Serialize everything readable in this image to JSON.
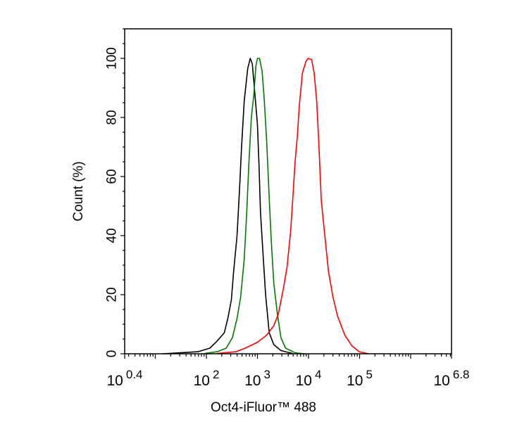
{
  "chart_data": {
    "type": "line",
    "title": "",
    "xlabel": "Oct4-iFluor™ 488",
    "ylabel": "Count  (%)",
    "x_scale": "log",
    "xlim": [
      2.512,
      6309573
    ],
    "ylim": [
      0,
      110
    ],
    "grid": false,
    "legend": "none",
    "x_ticks": [
      {
        "value": 2.512,
        "base": "10",
        "exp": "0.4"
      },
      {
        "value": 100,
        "base": "10",
        "exp": "2"
      },
      {
        "value": 1000,
        "base": "10",
        "exp": "3"
      },
      {
        "value": 10000,
        "base": "10",
        "exp": "4"
      },
      {
        "value": 100000,
        "base": "10",
        "exp": "5"
      },
      {
        "value": 6309573,
        "base": "10",
        "exp": "6.8"
      }
    ],
    "y_ticks": [
      "0",
      "20",
      "40",
      "60",
      "80",
      "100"
    ],
    "series": [
      {
        "color": "#000000",
        "x": [
          14,
          68,
          117,
          162,
          224,
          263,
          309,
          339,
          398,
          447,
          490,
          550,
          646,
          724,
          794,
          891,
          1000,
          1072,
          1148,
          1288,
          1445,
          1698,
          2089,
          2884,
          4898
        ],
        "y": [
          0,
          0.7,
          1.9,
          4.3,
          7.1,
          11.9,
          18.3,
          27.1,
          39.9,
          55.9,
          70.3,
          85.5,
          96.6,
          100,
          98.2,
          87.8,
          77.5,
          63.9,
          47.9,
          33.5,
          19.9,
          7.1,
          3.1,
          1.1,
          0.1
        ]
      },
      {
        "color": "#007800",
        "x": [
          93,
          162,
          245,
          324,
          398,
          468,
          550,
          617,
          676,
          759,
          851,
          933,
          1000,
          1096,
          1230,
          1349,
          1514,
          1698,
          1862,
          2089,
          2455,
          2884,
          3548,
          5495,
          8318
        ],
        "y": [
          0.1,
          0.7,
          1.9,
          5.5,
          11.9,
          19.1,
          31.9,
          47.9,
          63.9,
          79.9,
          87.8,
          97.4,
          100,
          100,
          95.8,
          87,
          71.9,
          52.7,
          38.3,
          23.9,
          13.5,
          5.5,
          1.9,
          0.3,
          0
        ]
      },
      {
        "color": "#ff0000",
        "x": [
          162,
          380,
          575,
          1000,
          1514,
          2089,
          2570,
          3236,
          3802,
          4467,
          4898,
          5495,
          6026,
          6607,
          7586,
          8913,
          9772,
          11482,
          12882,
          14454,
          15849,
          17783,
          20893,
          24547,
          30200,
          37154,
          51286,
          70795,
          97724,
          151356
        ],
        "y": [
          0.1,
          0.7,
          1.9,
          3.9,
          6.3,
          9.5,
          13.5,
          22.3,
          29.5,
          41.5,
          51.9,
          65.5,
          73.5,
          83.9,
          95,
          99,
          100,
          99.6,
          95,
          85.5,
          71.9,
          51.9,
          39.9,
          27.9,
          19.1,
          12.7,
          6.3,
          2.7,
          0.7,
          0
        ]
      }
    ]
  }
}
